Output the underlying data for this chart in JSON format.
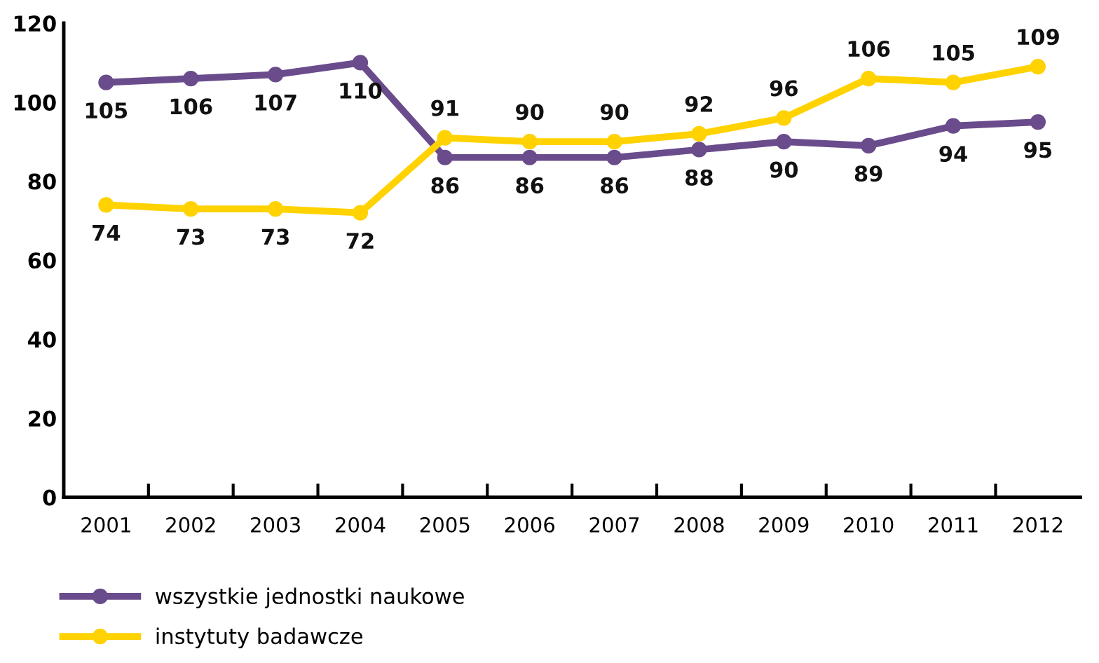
{
  "chart_data": {
    "type": "line",
    "categories": [
      "2001",
      "2002",
      "2003",
      "2004",
      "2005",
      "2006",
      "2007",
      "2008",
      "2009",
      "2010",
      "2011",
      "2012"
    ],
    "series": [
      {
        "name": "wszystkie jednostki naukowe",
        "color": "#6a4c8c",
        "values": [
          105,
          106,
          107,
          110,
          86,
          86,
          86,
          88,
          90,
          89,
          94,
          95
        ]
      },
      {
        "name": "instytuty badawcze",
        "color": "#ffd200",
        "values": [
          74,
          73,
          73,
          72,
          91,
          90,
          90,
          92,
          96,
          106,
          105,
          109
        ]
      }
    ],
    "ylim": [
      0,
      120
    ],
    "yticks": [
      0,
      20,
      40,
      60,
      80,
      100,
      120
    ],
    "data_labels": true,
    "marker": "circle",
    "line_style": "solid",
    "grid": false,
    "legend": "bottom left"
  }
}
